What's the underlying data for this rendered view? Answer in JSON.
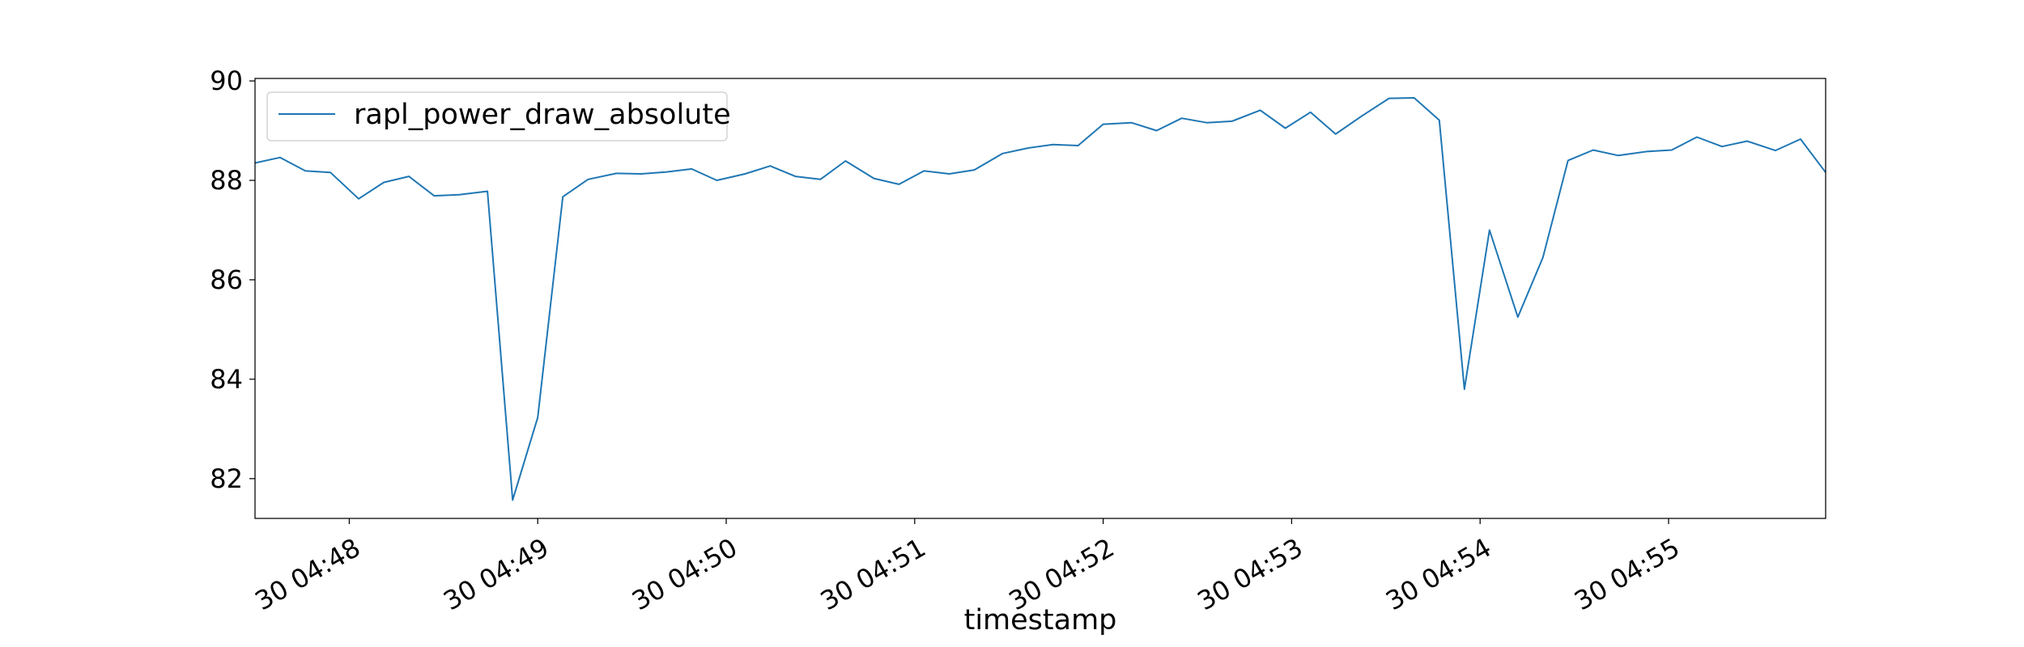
{
  "chart_data": {
    "type": "line",
    "title": "",
    "xlabel": "timestamp",
    "ylabel": "",
    "series_color": "#1f77b4",
    "grid": false,
    "legend_placement": "top-left",
    "legend": [
      "rapl_power_draw_absolute"
    ],
    "x_axis": {
      "type": "time",
      "range": [
        "04:47:30",
        "04:55:50"
      ],
      "ticks": [
        {
          "time": "04:48:00",
          "label": "30 04:48"
        },
        {
          "time": "04:49:00",
          "label": "30 04:49"
        },
        {
          "time": "04:50:00",
          "label": "30 04:50"
        },
        {
          "time": "04:51:00",
          "label": "30 04:51"
        },
        {
          "time": "04:52:00",
          "label": "30 04:52"
        },
        {
          "time": "04:53:00",
          "label": "30 04:53"
        },
        {
          "time": "04:54:00",
          "label": "30 04:54"
        },
        {
          "time": "04:55:00",
          "label": "30 04:55"
        }
      ]
    },
    "y_axis": {
      "range": [
        81.2,
        90.05
      ],
      "ticks": [
        82,
        84,
        86,
        88,
        90
      ]
    },
    "series": [
      {
        "name": "rapl_power_draw_absolute",
        "points": [
          [
            "04:47:30",
            88.35
          ],
          [
            "04:47:38",
            88.46
          ],
          [
            "04:47:46",
            88.19
          ],
          [
            "04:47:54",
            88.16
          ],
          [
            "04:48:03",
            87.63
          ],
          [
            "04:48:11",
            87.96
          ],
          [
            "04:48:19",
            88.08
          ],
          [
            "04:48:27",
            87.69
          ],
          [
            "04:48:35",
            87.71
          ],
          [
            "04:48:44",
            87.78
          ],
          [
            "04:48:52",
            81.57
          ],
          [
            "04:49:00",
            83.23
          ],
          [
            "04:49:08",
            87.67
          ],
          [
            "04:49:16",
            88.02
          ],
          [
            "04:49:25",
            88.14
          ],
          [
            "04:49:33",
            88.13
          ],
          [
            "04:49:41",
            88.17
          ],
          [
            "04:49:49",
            88.23
          ],
          [
            "04:49:57",
            88.0
          ],
          [
            "04:50:06",
            88.13
          ],
          [
            "04:50:14",
            88.29
          ],
          [
            "04:50:22",
            88.08
          ],
          [
            "04:50:30",
            88.02
          ],
          [
            "04:50:38",
            88.39
          ],
          [
            "04:50:47",
            88.04
          ],
          [
            "04:50:55",
            87.92
          ],
          [
            "04:51:03",
            88.19
          ],
          [
            "04:51:11",
            88.13
          ],
          [
            "04:51:19",
            88.21
          ],
          [
            "04:51:28",
            88.54
          ],
          [
            "04:51:36",
            88.65
          ],
          [
            "04:51:44",
            88.72
          ],
          [
            "04:51:52",
            88.7
          ],
          [
            "04:52:00",
            89.13
          ],
          [
            "04:52:09",
            89.16
          ],
          [
            "04:52:17",
            89.0
          ],
          [
            "04:52:25",
            89.25
          ],
          [
            "04:52:33",
            89.16
          ],
          [
            "04:52:41",
            89.19
          ],
          [
            "04:52:50",
            89.41
          ],
          [
            "04:52:58",
            89.05
          ],
          [
            "04:53:06",
            89.37
          ],
          [
            "04:53:14",
            88.93
          ],
          [
            "04:53:22",
            89.28
          ],
          [
            "04:53:31",
            89.65
          ],
          [
            "04:53:39",
            89.66
          ],
          [
            "04:53:47",
            89.21
          ],
          [
            "04:53:55",
            83.8
          ],
          [
            "04:54:03",
            87.0
          ],
          [
            "04:54:12",
            85.25
          ],
          [
            "04:54:20",
            86.45
          ],
          [
            "04:54:28",
            88.4
          ],
          [
            "04:54:36",
            88.61
          ],
          [
            "04:54:44",
            88.5
          ],
          [
            "04:54:53",
            88.58
          ],
          [
            "04:55:01",
            88.61
          ],
          [
            "04:55:09",
            88.87
          ],
          [
            "04:55:17",
            88.68
          ],
          [
            "04:55:25",
            88.79
          ],
          [
            "04:55:34",
            88.6
          ],
          [
            "04:55:42",
            88.83
          ],
          [
            "04:55:50",
            88.16
          ]
        ]
      }
    ]
  }
}
